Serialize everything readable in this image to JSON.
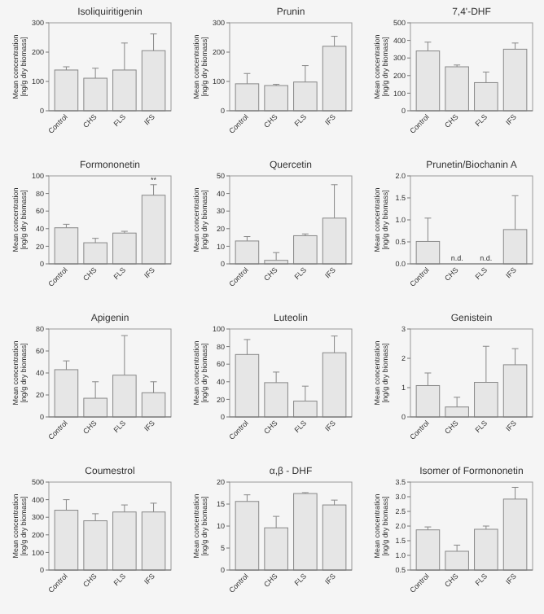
{
  "chart_data": [
    {
      "type": "bar",
      "title": "Isoliquiritigenin",
      "ylabel": "Mean concentration\n[ng/g dry biomass]",
      "categories": [
        "Control",
        "CHS",
        "FLS",
        "IFS"
      ],
      "values": [
        139,
        111,
        139,
        205
      ],
      "errors": [
        [
          139,
          150
        ],
        [
          111,
          145
        ],
        [
          139,
          231
        ],
        [
          205,
          262
        ]
      ],
      "color": "#e6e6e6",
      "ylim": [
        0,
        300
      ],
      "yticks": [
        0,
        100,
        200,
        300
      ]
    },
    {
      "type": "bar",
      "title": "Prunin",
      "ylabel": "Mean concentration\n[ng/g dry biomass]",
      "categories": [
        "Control",
        "CHS",
        "FLS",
        "IFS"
      ],
      "values": [
        92,
        86,
        98,
        220
      ],
      "errors": [
        [
          92,
          127
        ],
        [
          86,
          90
        ],
        [
          98,
          154
        ],
        [
          220,
          254
        ]
      ],
      "color": "#e6e6e6",
      "ylim": [
        0,
        300
      ],
      "yticks": [
        0,
        100,
        200,
        300
      ]
    },
    {
      "type": "bar",
      "title": "7,4'-DHF",
      "ylabel": "Mean concentration\n[ng/g dry biomass]",
      "categories": [
        "Control",
        "CHS",
        "FLS",
        "IFS"
      ],
      "values": [
        340,
        250,
        160,
        350
      ],
      "errors": [
        [
          340,
          390
        ],
        [
          250,
          260
        ],
        [
          160,
          220
        ],
        [
          350,
          385
        ]
      ],
      "color": "#e6e6e6",
      "ylim": [
        0,
        500
      ],
      "yticks": [
        0,
        100,
        200,
        300,
        400,
        500
      ]
    },
    {
      "type": "bar",
      "title": "Formononetin",
      "ylabel": "Mean concentration\n[ng/g dry biomass]",
      "categories": [
        "Control",
        "CHS",
        "FLS",
        "IFS"
      ],
      "values": [
        41,
        24,
        35,
        78
      ],
      "errors": [
        [
          41,
          45
        ],
        [
          24,
          29
        ],
        [
          35,
          37
        ],
        [
          78,
          90
        ]
      ],
      "color": "#e6e6e6",
      "ylim": [
        0,
        100
      ],
      "yticks": [
        0,
        20,
        40,
        60,
        80,
        100
      ],
      "annotations": [
        {
          "text": "**",
          "x": "IFS",
          "y": 90
        }
      ]
    },
    {
      "type": "bar",
      "title": "Quercetin",
      "ylabel": "Mean concentration\n[ng/g dry biomass]",
      "categories": [
        "Control",
        "CHS",
        "FLS",
        "IFS"
      ],
      "values": [
        13,
        2,
        16,
        26
      ],
      "errors": [
        [
          13,
          15.5
        ],
        [
          2,
          6.4
        ],
        [
          16,
          17
        ],
        [
          26,
          45
        ]
      ],
      "color": "#e6e6e6",
      "ylim": [
        0,
        50
      ],
      "yticks": [
        0,
        10,
        20,
        30,
        40,
        50
      ]
    },
    {
      "type": "bar",
      "title": "Prunetin/Biochanin A",
      "ylabel": "Mean concentration\n[ng/g dry biomass]",
      "categories": [
        "Control",
        "CHS",
        "FLS",
        "IFS"
      ],
      "values": [
        0.51,
        null,
        null,
        0.78
      ],
      "errors": [
        [
          0.51,
          1.04
        ],
        null,
        null,
        [
          0.78,
          1.55
        ]
      ],
      "color": "#e6e6e6",
      "ylim": [
        0,
        2
      ],
      "yticks": [
        {
          "value": 0,
          "label": "0.0"
        },
        {
          "value": 0.5,
          "label": "0.5"
        },
        {
          "value": 1,
          "label": "1.0"
        },
        {
          "value": 1.5,
          "label": "1.5"
        },
        {
          "value": 2,
          "label": "2.0"
        }
      ],
      "annotations": [
        "n.d.",
        "n.d."
      ]
    },
    {
      "type": "bar",
      "title": "Apigenin",
      "ylabel": "Mean concentration\n[ng/g dry biomass]",
      "categories": [
        "Control",
        "CHS",
        "FLS",
        "IFS"
      ],
      "values": [
        43,
        17,
        38,
        22
      ],
      "errors": [
        [
          43,
          51
        ],
        [
          17,
          32
        ],
        [
          38,
          74
        ],
        [
          22,
          32
        ]
      ],
      "color": "#e6e6e6",
      "ylim": [
        0,
        80
      ],
      "yticks": [
        0,
        20,
        40,
        60,
        80
      ]
    },
    {
      "type": "bar",
      "title": "Luteolin",
      "ylabel": "Mean concentration\n[ng/g dry biomass]",
      "categories": [
        "Control",
        "CHS",
        "FLS",
        "IFS"
      ],
      "values": [
        71,
        39,
        18,
        73
      ],
      "errors": [
        [
          71,
          88
        ],
        [
          39,
          51
        ],
        [
          18,
          35
        ],
        [
          73,
          92
        ]
      ],
      "color": "#e6e6e6",
      "ylim": [
        0,
        100
      ],
      "yticks": [
        0,
        20,
        40,
        60,
        80,
        100
      ]
    },
    {
      "type": "bar",
      "title": "Genistein",
      "ylabel": "Mean concentration\n[ng/g dry biomass]",
      "categories": [
        "Control",
        "CHS",
        "FLS",
        "IFS"
      ],
      "values": [
        1.07,
        0.34,
        1.18,
        1.78
      ],
      "errors": [
        [
          1.07,
          1.5
        ],
        [
          0.34,
          0.67
        ],
        [
          1.18,
          2.41
        ],
        [
          1.78,
          2.33
        ]
      ],
      "color": "#e6e6e6",
      "ylim": [
        0,
        3
      ],
      "yticks": [
        0,
        1,
        2,
        3
      ]
    },
    {
      "type": "bar",
      "title": "Coumestrol",
      "ylabel": "Mean concentration\n[ng/g dry biomass]",
      "categories": [
        "Control",
        "CHS",
        "FLS",
        "IFS"
      ],
      "values": [
        340,
        280,
        330,
        330
      ],
      "errors": [
        [
          340,
          400
        ],
        [
          280,
          320
        ],
        [
          330,
          370
        ],
        [
          330,
          380
        ]
      ],
      "color": "#e6e6e6",
      "ylim": [
        0,
        500
      ],
      "yticks": [
        0,
        100,
        200,
        300,
        400,
        500
      ]
    },
    {
      "type": "bar",
      "title": "α,β - DHF",
      "ylabel": "Mean concentration\n[ng/g dry biomass]",
      "categories": [
        "Control",
        "CHS",
        "FLS",
        "IFS"
      ],
      "values": [
        15.6,
        9.6,
        17.4,
        14.8
      ],
      "errors": [
        [
          15.6,
          17.1
        ],
        [
          9.6,
          12.2
        ],
        [
          17.4,
          17.6
        ],
        [
          14.8,
          15.9
        ]
      ],
      "color": "#e6e6e6",
      "ylim": [
        0,
        20
      ],
      "yticks": [
        0,
        5,
        10,
        15,
        20
      ]
    },
    {
      "type": "bar",
      "title": "Isomer of Formononetin",
      "ylabel": "Mean concentration\n[ng/g dry biomass]",
      "categories": [
        "Control",
        "CHS",
        "FLS",
        "IFS"
      ],
      "values": [
        1.87,
        1.14,
        1.89,
        2.92
      ],
      "errors": [
        [
          1.87,
          1.97
        ],
        [
          1.14,
          1.35
        ],
        [
          1.89,
          2.0
        ],
        [
          2.92,
          3.32
        ]
      ],
      "color": "#e6e6e6",
      "ylim": [
        0.5,
        3.5
      ],
      "yticks": [
        0.5,
        {
          "value": 1,
          "label": "1.0"
        },
        1.5,
        {
          "value": 2,
          "label": "2.0"
        },
        2.5,
        {
          "value": 3,
          "label": "3.0"
        },
        3.5
      ]
    }
  ]
}
